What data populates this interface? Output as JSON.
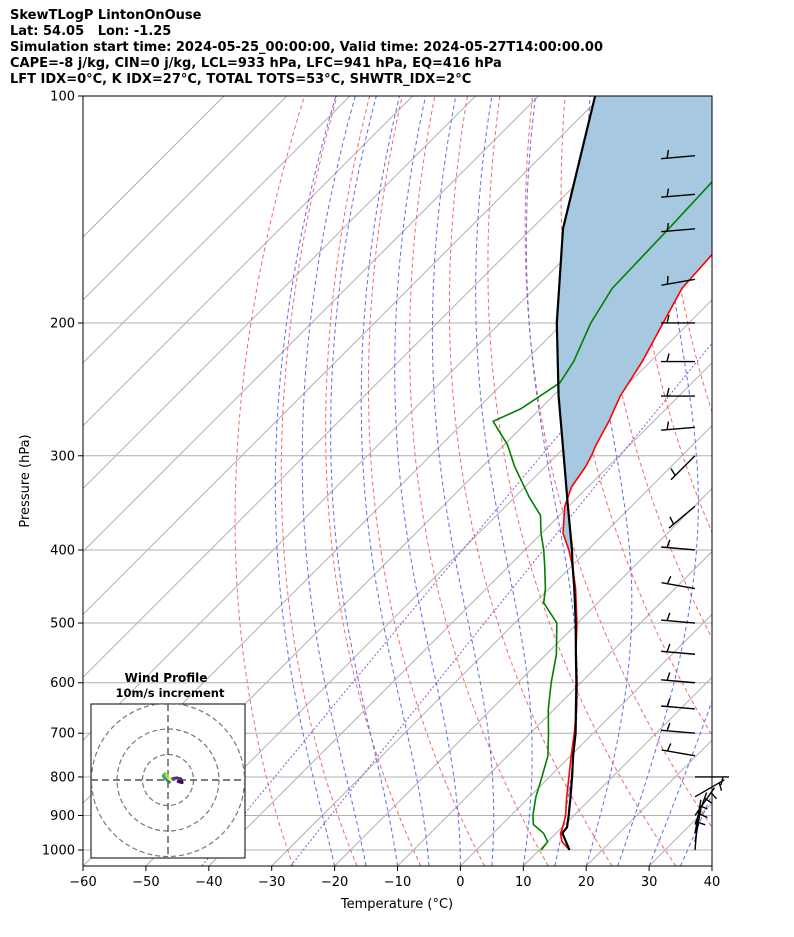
{
  "header": {
    "line1": "SkewTLogP LintonOnOuse",
    "line2": "Lat: 54.05   Lon: -1.25",
    "line3": "Simulation start time: 2024-05-25_00:00:00, Valid time: 2024-05-27T14:00:00.00",
    "line4": "CAPE=-8 j/kg, CIN=0 j/kg, LCL=933 hPa, LFC=941 hPa, EQ=416 hPa",
    "line5": "LFT IDX=0°C, K IDX=27°C, TOTAL TOTS=53°C, SHWTR_IDX=2°C"
  },
  "chart_data": {
    "type": "line",
    "xlabel": "Temperature (°C)",
    "ylabel": "Pressure (hPa)",
    "xlim": [
      -60,
      40
    ],
    "ylim": [
      1050,
      100
    ],
    "y_scale": "log",
    "skew": true,
    "grid": true,
    "x_ticks": [
      -60,
      -50,
      -40,
      -30,
      -20,
      -10,
      0,
      10,
      20,
      30,
      40
    ],
    "x_tick_labels": [
      "−60",
      "−50",
      "−40",
      "−30",
      "−20",
      "−10",
      "0",
      "10",
      "20",
      "30",
      "40"
    ],
    "y_ticks": [
      100,
      200,
      300,
      400,
      500,
      600,
      700,
      800,
      900,
      1000
    ],
    "y_tick_labels": [
      "100",
      "200",
      "300",
      "400",
      "500",
      "600",
      "700",
      "800",
      "900",
      "1000"
    ],
    "series": [
      {
        "role": "temperature",
        "color": "#ff0000",
        "points": [
          [
            1000,
            14.8
          ],
          [
            975,
            12.3
          ],
          [
            950,
            10.7
          ],
          [
            925,
            9.8
          ],
          [
            900,
            8.7
          ],
          [
            850,
            5.9
          ],
          [
            800,
            3.1
          ],
          [
            750,
            0.1
          ],
          [
            700,
            -3.0
          ],
          [
            650,
            -6.5
          ],
          [
            600,
            -10.6
          ],
          [
            550,
            -15.3
          ],
          [
            500,
            -20.1
          ],
          [
            450,
            -25.8
          ],
          [
            420,
            -29.9
          ],
          [
            400,
            -33.0
          ],
          [
            380,
            -36.6
          ],
          [
            350,
            -40.6
          ],
          [
            330,
            -42.6
          ],
          [
            310,
            -43.6
          ],
          [
            300,
            -44.4
          ],
          [
            290,
            -45.4
          ],
          [
            270,
            -47.1
          ],
          [
            250,
            -49.3
          ],
          [
            225,
            -51.3
          ],
          [
            200,
            -54.1
          ],
          [
            180,
            -56.6
          ],
          [
            160,
            -57.3
          ],
          [
            150,
            -57.7
          ],
          [
            125,
            -58.4
          ],
          [
            110,
            -57.9
          ],
          [
            100,
            -57.2
          ]
        ]
      },
      {
        "role": "dewpoint",
        "color": "#008000",
        "points": [
          [
            1000,
            10.3
          ],
          [
            975,
            10.0
          ],
          [
            950,
            8.0
          ],
          [
            925,
            5.0
          ],
          [
            900,
            3.5
          ],
          [
            850,
            1.0
          ],
          [
            800,
            -1.2
          ],
          [
            750,
            -3.6
          ],
          [
            700,
            -7.1
          ],
          [
            650,
            -11.0
          ],
          [
            600,
            -14.7
          ],
          [
            550,
            -18.4
          ],
          [
            500,
            -23.3
          ],
          [
            470,
            -28.6
          ],
          [
            450,
            -30.6
          ],
          [
            420,
            -34.3
          ],
          [
            400,
            -37.0
          ],
          [
            380,
            -40.1
          ],
          [
            360,
            -43.0
          ],
          [
            340,
            -47.8
          ],
          [
            310,
            -54.9
          ],
          [
            290,
            -59.5
          ],
          [
            270,
            -65.5
          ],
          [
            260,
            -63.1
          ],
          [
            240,
            -61.0
          ],
          [
            225,
            -62.2
          ],
          [
            200,
            -65.6
          ],
          [
            180,
            -67.7
          ],
          [
            150,
            -68.2
          ],
          [
            125,
            -68.9
          ],
          [
            100,
            -70.0
          ]
        ]
      },
      {
        "role": "parcel",
        "color": "#000000",
        "points": [
          [
            1000,
            14.8
          ],
          [
            950,
            11.0
          ],
          [
            933,
            10.8
          ],
          [
            900,
            9.2
          ],
          [
            850,
            6.5
          ],
          [
            800,
            3.6
          ],
          [
            750,
            0.4
          ],
          [
            700,
            -2.8
          ],
          [
            650,
            -6.6
          ],
          [
            600,
            -10.7
          ],
          [
            550,
            -15.3
          ],
          [
            500,
            -20.3
          ],
          [
            450,
            -26.0
          ],
          [
            416,
            -30.4
          ],
          [
            400,
            -32.5
          ],
          [
            350,
            -40.1
          ],
          [
            300,
            -48.8
          ],
          [
            250,
            -59.1
          ],
          [
            200,
            -71.0
          ],
          [
            150,
            -85.0
          ],
          [
            100,
            -101.0
          ]
        ]
      }
    ],
    "cape_shading_color": "#a6c8e0",
    "wind_barbs": [
      [
        1000,
        5,
        5
      ],
      [
        975,
        10,
        5
      ],
      [
        950,
        10,
        5
      ],
      [
        925,
        20,
        5
      ],
      [
        900,
        35,
        5
      ],
      [
        850,
        60,
        5
      ],
      [
        800,
        90,
        5
      ],
      [
        750,
        280,
        5
      ],
      [
        700,
        275,
        5
      ],
      [
        650,
        275,
        5
      ],
      [
        600,
        275,
        5
      ],
      [
        550,
        275,
        5
      ],
      [
        500,
        275,
        5
      ],
      [
        450,
        280,
        5
      ],
      [
        400,
        275,
        5
      ],
      [
        350,
        230,
        5
      ],
      [
        300,
        225,
        5
      ],
      [
        275,
        265,
        5
      ],
      [
        250,
        270,
        5
      ],
      [
        225,
        270,
        5
      ],
      [
        200,
        270,
        5
      ],
      [
        175,
        260,
        5
      ],
      [
        150,
        265,
        5
      ],
      [
        135,
        265,
        5
      ],
      [
        120,
        265,
        5
      ]
    ],
    "hodograph": {
      "title": "Wind Profile",
      "subtitle": "10m/s increment",
      "rings": [
        10,
        20,
        30
      ],
      "points": [
        [
          4.0,
          -0.6
        ],
        [
          5.5,
          -1.0
        ],
        [
          5.0,
          0.4
        ],
        [
          3.5,
          0.8
        ],
        [
          2.0,
          0.6
        ],
        [
          0.8,
          0.0
        ],
        [
          0.5,
          -0.8
        ],
        [
          -0.5,
          0.2
        ],
        [
          -1.2,
          0.6
        ],
        [
          -1.8,
          1.6
        ],
        [
          -1.3,
          2.4
        ],
        [
          -0.5,
          2.0
        ],
        [
          0.0,
          1.0
        ],
        [
          0.5,
          0.5
        ],
        [
          1.0,
          0.0
        ]
      ]
    }
  }
}
